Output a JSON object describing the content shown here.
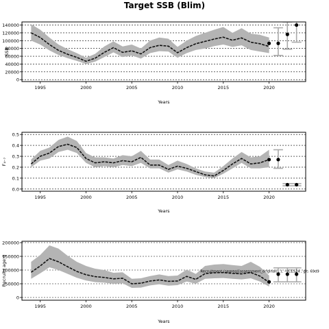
{
  "title": "Target SSB (Blim)",
  "colors": {
    "band": "#b4b4b4",
    "median": "#111111",
    "grid": "#000000",
    "forecast": "#aaaaaa",
    "point": "#000000"
  },
  "chart_data": [
    {
      "type": "line",
      "name": "ssb",
      "xlabel": "Years",
      "ylabel": "SSB",
      "xlim": [
        1993,
        2024
      ],
      "ylim": [
        -5000,
        148000
      ],
      "xticks": [
        1995,
        2000,
        2005,
        2010,
        2015,
        2020
      ],
      "yticks": [
        0,
        20000,
        40000,
        60000,
        80000,
        100000,
        120000,
        140000
      ],
      "grid": true,
      "x": [
        1994,
        1995,
        1996,
        1997,
        1998,
        1999,
        2000,
        2001,
        2002,
        2003,
        2004,
        2005,
        2006,
        2007,
        2008,
        2009,
        2010,
        2011,
        2012,
        2013,
        2014,
        2015,
        2016,
        2017,
        2018,
        2019,
        2020
      ],
      "median": [
        120000,
        108000,
        90000,
        75000,
        65000,
        57000,
        47000,
        55000,
        70000,
        82000,
        70000,
        74000,
        66000,
        82000,
        88000,
        86000,
        69000,
        82000,
        92000,
        98000,
        104000,
        109000,
        101000,
        107000,
        96000,
        92000,
        85000
      ],
      "lower": [
        100000,
        90000,
        75000,
        63000,
        55000,
        48000,
        40000,
        46000,
        58000,
        70000,
        58000,
        62000,
        54000,
        68000,
        73000,
        72000,
        56000,
        68000,
        76000,
        80000,
        86000,
        90000,
        84000,
        88000,
        76000,
        72000,
        68000
      ],
      "upper": [
        142000,
        128000,
        108000,
        90000,
        78000,
        68000,
        56000,
        66000,
        85000,
        98000,
        85000,
        90000,
        80000,
        100000,
        108000,
        105000,
        84000,
        100000,
        112000,
        120000,
        128000,
        135000,
        120000,
        132000,
        118000,
        115000,
        108000
      ],
      "last_assessment": {
        "x": 2020,
        "y": 93000
      },
      "forecast": [
        {
          "x": 2021,
          "y": 93000,
          "lower": 62000,
          "upper": 133000
        },
        {
          "x": 2022,
          "y": 116000,
          "lower": 78000,
          "upper": 148000
        },
        {
          "x": 2023,
          "y": 140000,
          "lower": 96000,
          "upper": 185000
        }
      ]
    },
    {
      "type": "line",
      "name": "fbar",
      "xlabel": "Years",
      "ylabel": "F₄₋₇",
      "xlim": [
        1993,
        2024
      ],
      "ylim": [
        -0.02,
        0.52
      ],
      "xticks": [
        1995,
        2000,
        2005,
        2010,
        2015,
        2020
      ],
      "yticks": [
        0.0,
        0.1,
        0.2,
        0.3,
        0.4,
        0.5
      ],
      "grid": true,
      "x": [
        1994,
        1995,
        1996,
        1997,
        1998,
        1999,
        2000,
        2001,
        2002,
        2003,
        2004,
        2005,
        2006,
        2007,
        2008,
        2009,
        2010,
        2011,
        2012,
        2013,
        2014,
        2015,
        2016,
        2017,
        2018,
        2019,
        2020
      ],
      "median": [
        0.23,
        0.3,
        0.33,
        0.39,
        0.41,
        0.38,
        0.28,
        0.24,
        0.25,
        0.24,
        0.26,
        0.25,
        0.29,
        0.22,
        0.22,
        0.18,
        0.21,
        0.19,
        0.16,
        0.13,
        0.12,
        0.17,
        0.23,
        0.28,
        0.23,
        0.24,
        0.27
      ],
      "lower": [
        0.2,
        0.26,
        0.28,
        0.34,
        0.36,
        0.33,
        0.24,
        0.2,
        0.21,
        0.2,
        0.22,
        0.21,
        0.24,
        0.19,
        0.19,
        0.15,
        0.18,
        0.16,
        0.13,
        0.11,
        0.1,
        0.14,
        0.19,
        0.24,
        0.19,
        0.19,
        0.2
      ],
      "upper": [
        0.27,
        0.35,
        0.38,
        0.45,
        0.48,
        0.44,
        0.33,
        0.29,
        0.29,
        0.28,
        0.31,
        0.3,
        0.35,
        0.27,
        0.27,
        0.22,
        0.26,
        0.23,
        0.19,
        0.16,
        0.15,
        0.21,
        0.28,
        0.34,
        0.29,
        0.3,
        0.36
      ],
      "last_assessment": {
        "x": 2020,
        "y": 0.27
      },
      "forecast": [
        {
          "x": 2021,
          "y": 0.27,
          "lower": 0.19,
          "upper": 0.36
        },
        {
          "x": 2022,
          "y": 0.04,
          "lower": 0.03,
          "upper": 0.05
        },
        {
          "x": 2023,
          "y": 0.04,
          "lower": 0.03,
          "upper": 0.05
        }
      ]
    },
    {
      "type": "line",
      "name": "recruitment",
      "xlabel": "Years",
      "ylabel": "Recruits age 0",
      "xlim": [
        1993,
        2024
      ],
      "ylim": [
        -10000,
        205000
      ],
      "xticks": [
        1995,
        2000,
        2005,
        2010,
        2015,
        2020
      ],
      "yticks": [
        0,
        50000,
        100000,
        150000,
        200000
      ],
      "grid": true,
      "x": [
        1994,
        1995,
        1996,
        1997,
        1998,
        1999,
        2000,
        2001,
        2002,
        2003,
        2004,
        2005,
        2006,
        2007,
        2008,
        2009,
        2010,
        2011,
        2012,
        2013,
        2014,
        2015,
        2016,
        2017,
        2018,
        2019,
        2020
      ],
      "median": [
        92000,
        115000,
        142000,
        130000,
        112000,
        95000,
        83000,
        76000,
        73000,
        68000,
        70000,
        50000,
        52000,
        60000,
        64000,
        59000,
        60000,
        77000,
        66000,
        87000,
        90000,
        91000,
        88000,
        86000,
        91000,
        78000,
        55000
      ],
      "lower": [
        68000,
        88000,
        110000,
        100000,
        86000,
        72000,
        62000,
        56000,
        54000,
        50000,
        52000,
        35000,
        36000,
        44000,
        48000,
        43000,
        45000,
        58000,
        50000,
        68000,
        70000,
        71000,
        68000,
        66000,
        70000,
        58000,
        40000
      ],
      "upper": [
        130000,
        155000,
        190000,
        178000,
        152000,
        130000,
        115000,
        105000,
        100000,
        90000,
        92000,
        68000,
        70000,
        78000,
        84000,
        78000,
        80000,
        102000,
        86000,
        115000,
        120000,
        122000,
        118000,
        115000,
        130000,
        112000,
        80000
      ],
      "last_assessment": {
        "x": 2020,
        "y": 57000
      },
      "forecast": [
        {
          "x": 2021,
          "y": 85000,
          "lower": 57000,
          "upper": 108000
        },
        {
          "x": 2022,
          "y": 85000,
          "lower": 57000,
          "upper": 108000
        },
        {
          "x": 2023,
          "y": 85000,
          "lower": 57000,
          "upper": 108000
        }
      ],
      "annotation": "Recruitment (segreg)[assessment_original(...), ~ICES24 , glt: 69d9"
    }
  ]
}
